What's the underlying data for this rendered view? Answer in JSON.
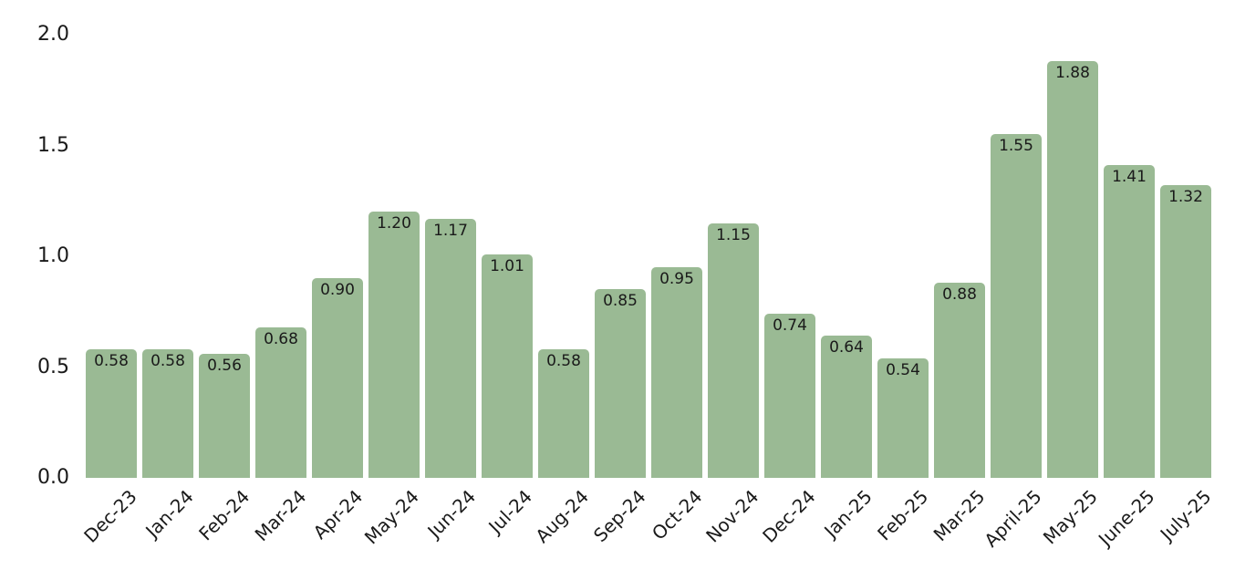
{
  "chart_data": {
    "type": "bar",
    "title": "",
    "xlabel": "",
    "ylabel": "",
    "categories": [
      "Dec-23",
      "Jan-24",
      "Feb-24",
      "Mar-24",
      "Apr-24",
      "May-24",
      "Jun-24",
      "Jul-24",
      "Aug-24",
      "Sep-24",
      "Oct-24",
      "Nov-24",
      "Dec-24",
      "Jan-25",
      "Feb-25",
      "Mar-25",
      "April-25",
      "May-25",
      "June-25",
      "July-25"
    ],
    "values": [
      0.58,
      0.58,
      0.56,
      0.68,
      0.9,
      1.2,
      1.17,
      1.01,
      0.58,
      0.85,
      0.95,
      1.15,
      0.74,
      0.64,
      0.54,
      0.88,
      1.55,
      1.88,
      1.41,
      1.32
    ],
    "value_labels": [
      "0.58",
      "0.58",
      "0.56",
      "0.68",
      "0.90",
      "1.20",
      "1.17",
      "1.01",
      "0.58",
      "0.85",
      "0.95",
      "1.15",
      "0.74",
      "0.64",
      "0.54",
      "0.88",
      "1.55",
      "1.88",
      "1.41",
      "1.32"
    ],
    "yticks": [
      "0.0",
      "0.5",
      "1.0",
      "1.5",
      "2.0"
    ],
    "ylim": [
      0.0,
      2.0
    ],
    "grid": false,
    "legend": null,
    "bar_color": "#9aba94",
    "text_color": "#1a1a1a",
    "background_color": "#ffffff"
  }
}
